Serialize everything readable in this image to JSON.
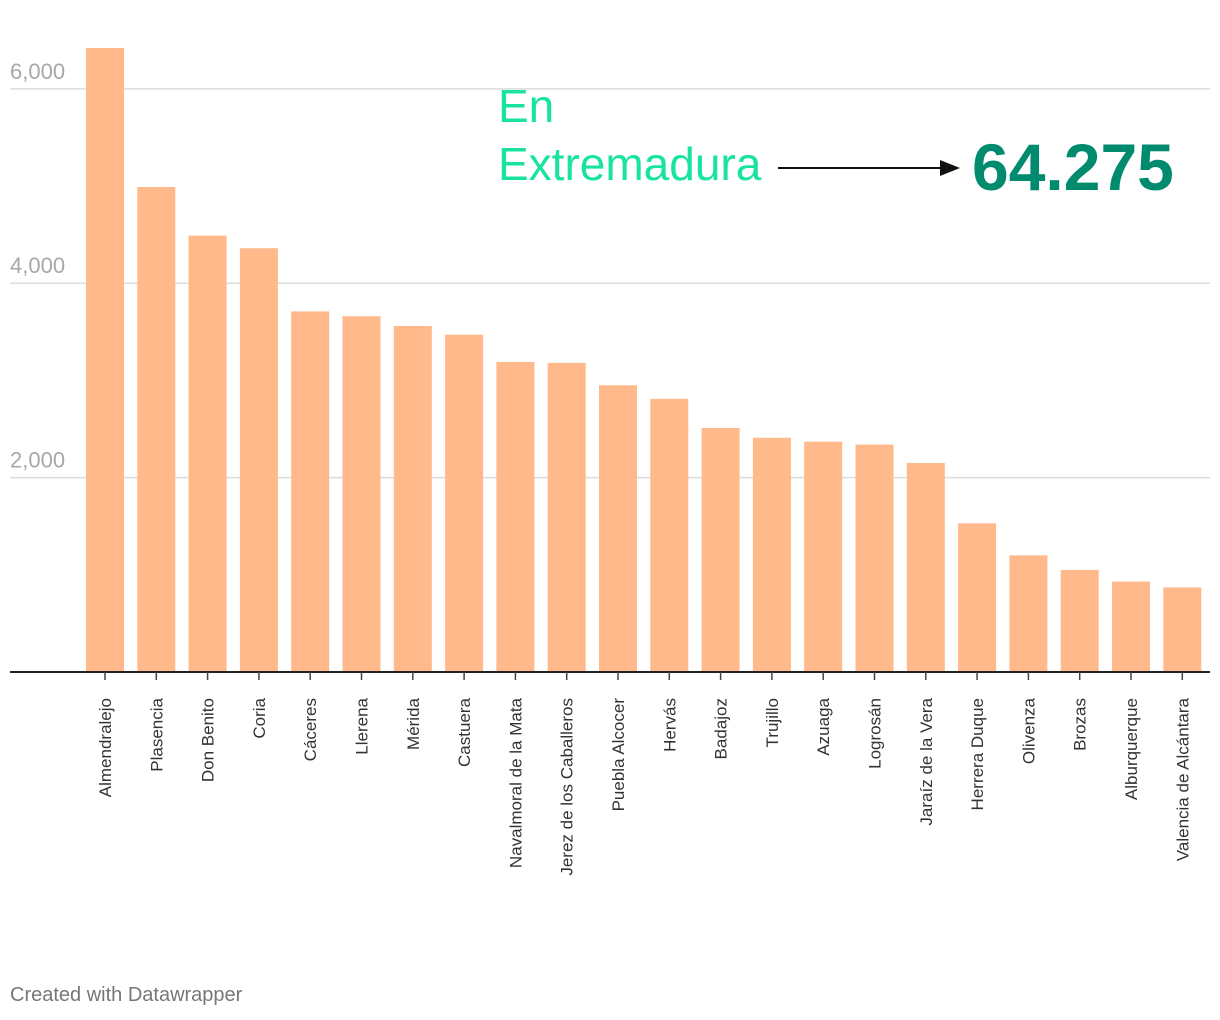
{
  "chart_data": {
    "type": "bar",
    "categories": [
      "Almendralejo",
      "Plasencia",
      "Don Benito",
      "Coria",
      "Cáceres",
      "Llerena",
      "Mérida",
      "Castuera",
      "Navalmoral de la Mata",
      "Jerez de los Caballeros",
      "Puebla Alcocer",
      "Hervás",
      "Badajoz",
      "Trujillo",
      "Azuaga",
      "Logrosán",
      "Jaraíz de la Vera",
      "Herrera Duque",
      "Olivenza",
      "Brozas",
      "Alburquerque",
      "Valencia de Alcántara"
    ],
    "values": [
      6420,
      4990,
      4490,
      4360,
      3710,
      3660,
      3560,
      3470,
      3190,
      3180,
      2950,
      2810,
      2510,
      2410,
      2370,
      2340,
      2150,
      1530,
      1200,
      1050,
      930,
      870
    ],
    "yticks": [
      2000,
      4000,
      6000
    ],
    "ytick_labels": [
      "2,000",
      "4,000",
      "6,000"
    ],
    "ylim": [
      0,
      6420
    ],
    "grid": true,
    "bar_color": "#ffb98a",
    "annotation": {
      "label_line1": "En",
      "label_line2": "Extremadura",
      "total": "64.275",
      "label_color": "#19e3a2",
      "total_color": "#008a6e"
    }
  },
  "footer": {
    "credit": "Created with Datawrapper"
  }
}
